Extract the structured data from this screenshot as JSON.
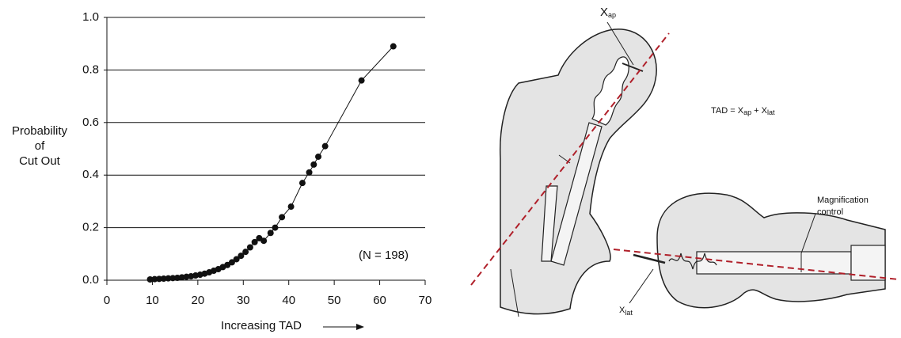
{
  "chart_data": {
    "type": "line",
    "x_label": "Increasing TAD",
    "y_label_lines": [
      "Probability",
      "of",
      "Cut Out"
    ],
    "annotation": "(N = 198)",
    "color": "#111111",
    "x": [
      9.5,
      10.5,
      11.5,
      12.5,
      13.5,
      14.5,
      15.5,
      16.5,
      17.5,
      18.5,
      19.5,
      20.5,
      21.5,
      22.5,
      23.5,
      24.5,
      25.5,
      26.5,
      27.5,
      28.5,
      29.5,
      30.5,
      31.5,
      32.5,
      33.5,
      34.5,
      36,
      37,
      38.5,
      40.5,
      43,
      44.5,
      45.5,
      46.5,
      48,
      56,
      63
    ],
    "values": [
      0.003,
      0.004,
      0.005,
      0.006,
      0.007,
      0.008,
      0.009,
      0.011,
      0.013,
      0.015,
      0.018,
      0.021,
      0.025,
      0.03,
      0.036,
      0.042,
      0.05,
      0.058,
      0.068,
      0.08,
      0.093,
      0.108,
      0.125,
      0.145,
      0.16,
      0.15,
      0.18,
      0.2,
      0.24,
      0.28,
      0.37,
      0.41,
      0.44,
      0.47,
      0.51,
      0.76,
      0.89
    ],
    "xlim": [
      0,
      70
    ],
    "xticks": [
      0,
      10,
      20,
      30,
      40,
      50,
      60,
      70
    ],
    "ylim": [
      0,
      1
    ],
    "yticks": [
      {
        "value": 0,
        "label": "0.0"
      },
      0.2,
      0.4,
      0.6,
      0.8,
      {
        "value": 1,
        "label": "1.0"
      }
    ],
    "grid": true
  },
  "diagram": {
    "x_ap": {
      "base": "X",
      "sub": "ap"
    },
    "formula": {
      "left": "TAD = X",
      "sub1": "ap",
      "mid": " + X",
      "sub2": "lat"
    },
    "magnification": [
      "Magnification",
      "control"
    ],
    "x_lat": {
      "base": "X",
      "sub": "lat"
    }
  }
}
